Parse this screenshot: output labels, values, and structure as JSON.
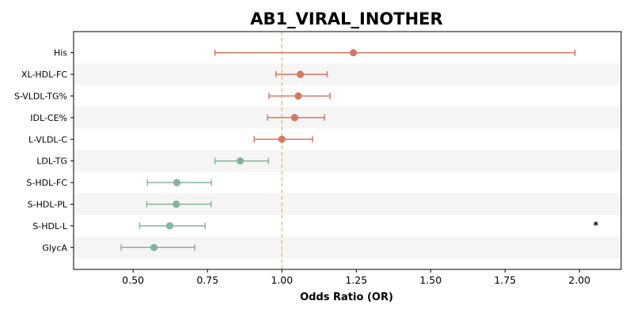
{
  "chart_data": {
    "type": "forest",
    "title": "AB1_VIRAL_INOTHER",
    "xlabel": "Odds Ratio (OR)",
    "ylabel": "",
    "xlim": [
      0.3,
      2.14
    ],
    "xticks": [
      0.5,
      0.75,
      1.0,
      1.25,
      1.5,
      1.75,
      2.0
    ],
    "xtick_labels": [
      "0.50",
      "0.75",
      "1.00",
      "1.25",
      "1.50",
      "1.75",
      "2.00"
    ],
    "reference_line": 1.0,
    "grid": false,
    "alternating_row_shading": true,
    "rows": [
      {
        "label": "His",
        "or": 1.24,
        "lo": 0.775,
        "hi": 1.985,
        "direction": "up"
      },
      {
        "label": "XL-HDL-FC",
        "or": 1.062,
        "lo": 0.98,
        "hi": 1.152,
        "direction": "up"
      },
      {
        "label": "S-VLDL-TG%",
        "or": 1.055,
        "lo": 0.957,
        "hi": 1.162,
        "direction": "up"
      },
      {
        "label": "IDL-CE%",
        "or": 1.043,
        "lo": 0.952,
        "hi": 1.143,
        "direction": "up"
      },
      {
        "label": "L-VLDL-C",
        "or": 1.0,
        "lo": 0.907,
        "hi": 1.103,
        "direction": "up"
      },
      {
        "label": "LDL-TG",
        "or": 0.86,
        "lo": 0.775,
        "hi": 0.955,
        "direction": "down"
      },
      {
        "label": "S-HDL-FC",
        "or": 0.647,
        "lo": 0.548,
        "hi": 0.763,
        "direction": "down"
      },
      {
        "label": "S-HDL-PL",
        "or": 0.645,
        "lo": 0.546,
        "hi": 0.762,
        "direction": "down"
      },
      {
        "label": "S-HDL-L",
        "or": 0.623,
        "lo": 0.522,
        "hi": 0.742,
        "direction": "down"
      },
      {
        "label": "GlycA",
        "or": 0.57,
        "lo": 0.46,
        "hi": 0.707,
        "direction": "down"
      }
    ],
    "annotations": [
      {
        "text": "*",
        "row": "S-HDL-L",
        "x": 2.055
      }
    ]
  },
  "colors": {
    "up": "#d9775f",
    "down": "#84b59b",
    "reference_line": "#f6c47a",
    "row_shade": "#f5f5f5",
    "axis": "#000000"
  }
}
